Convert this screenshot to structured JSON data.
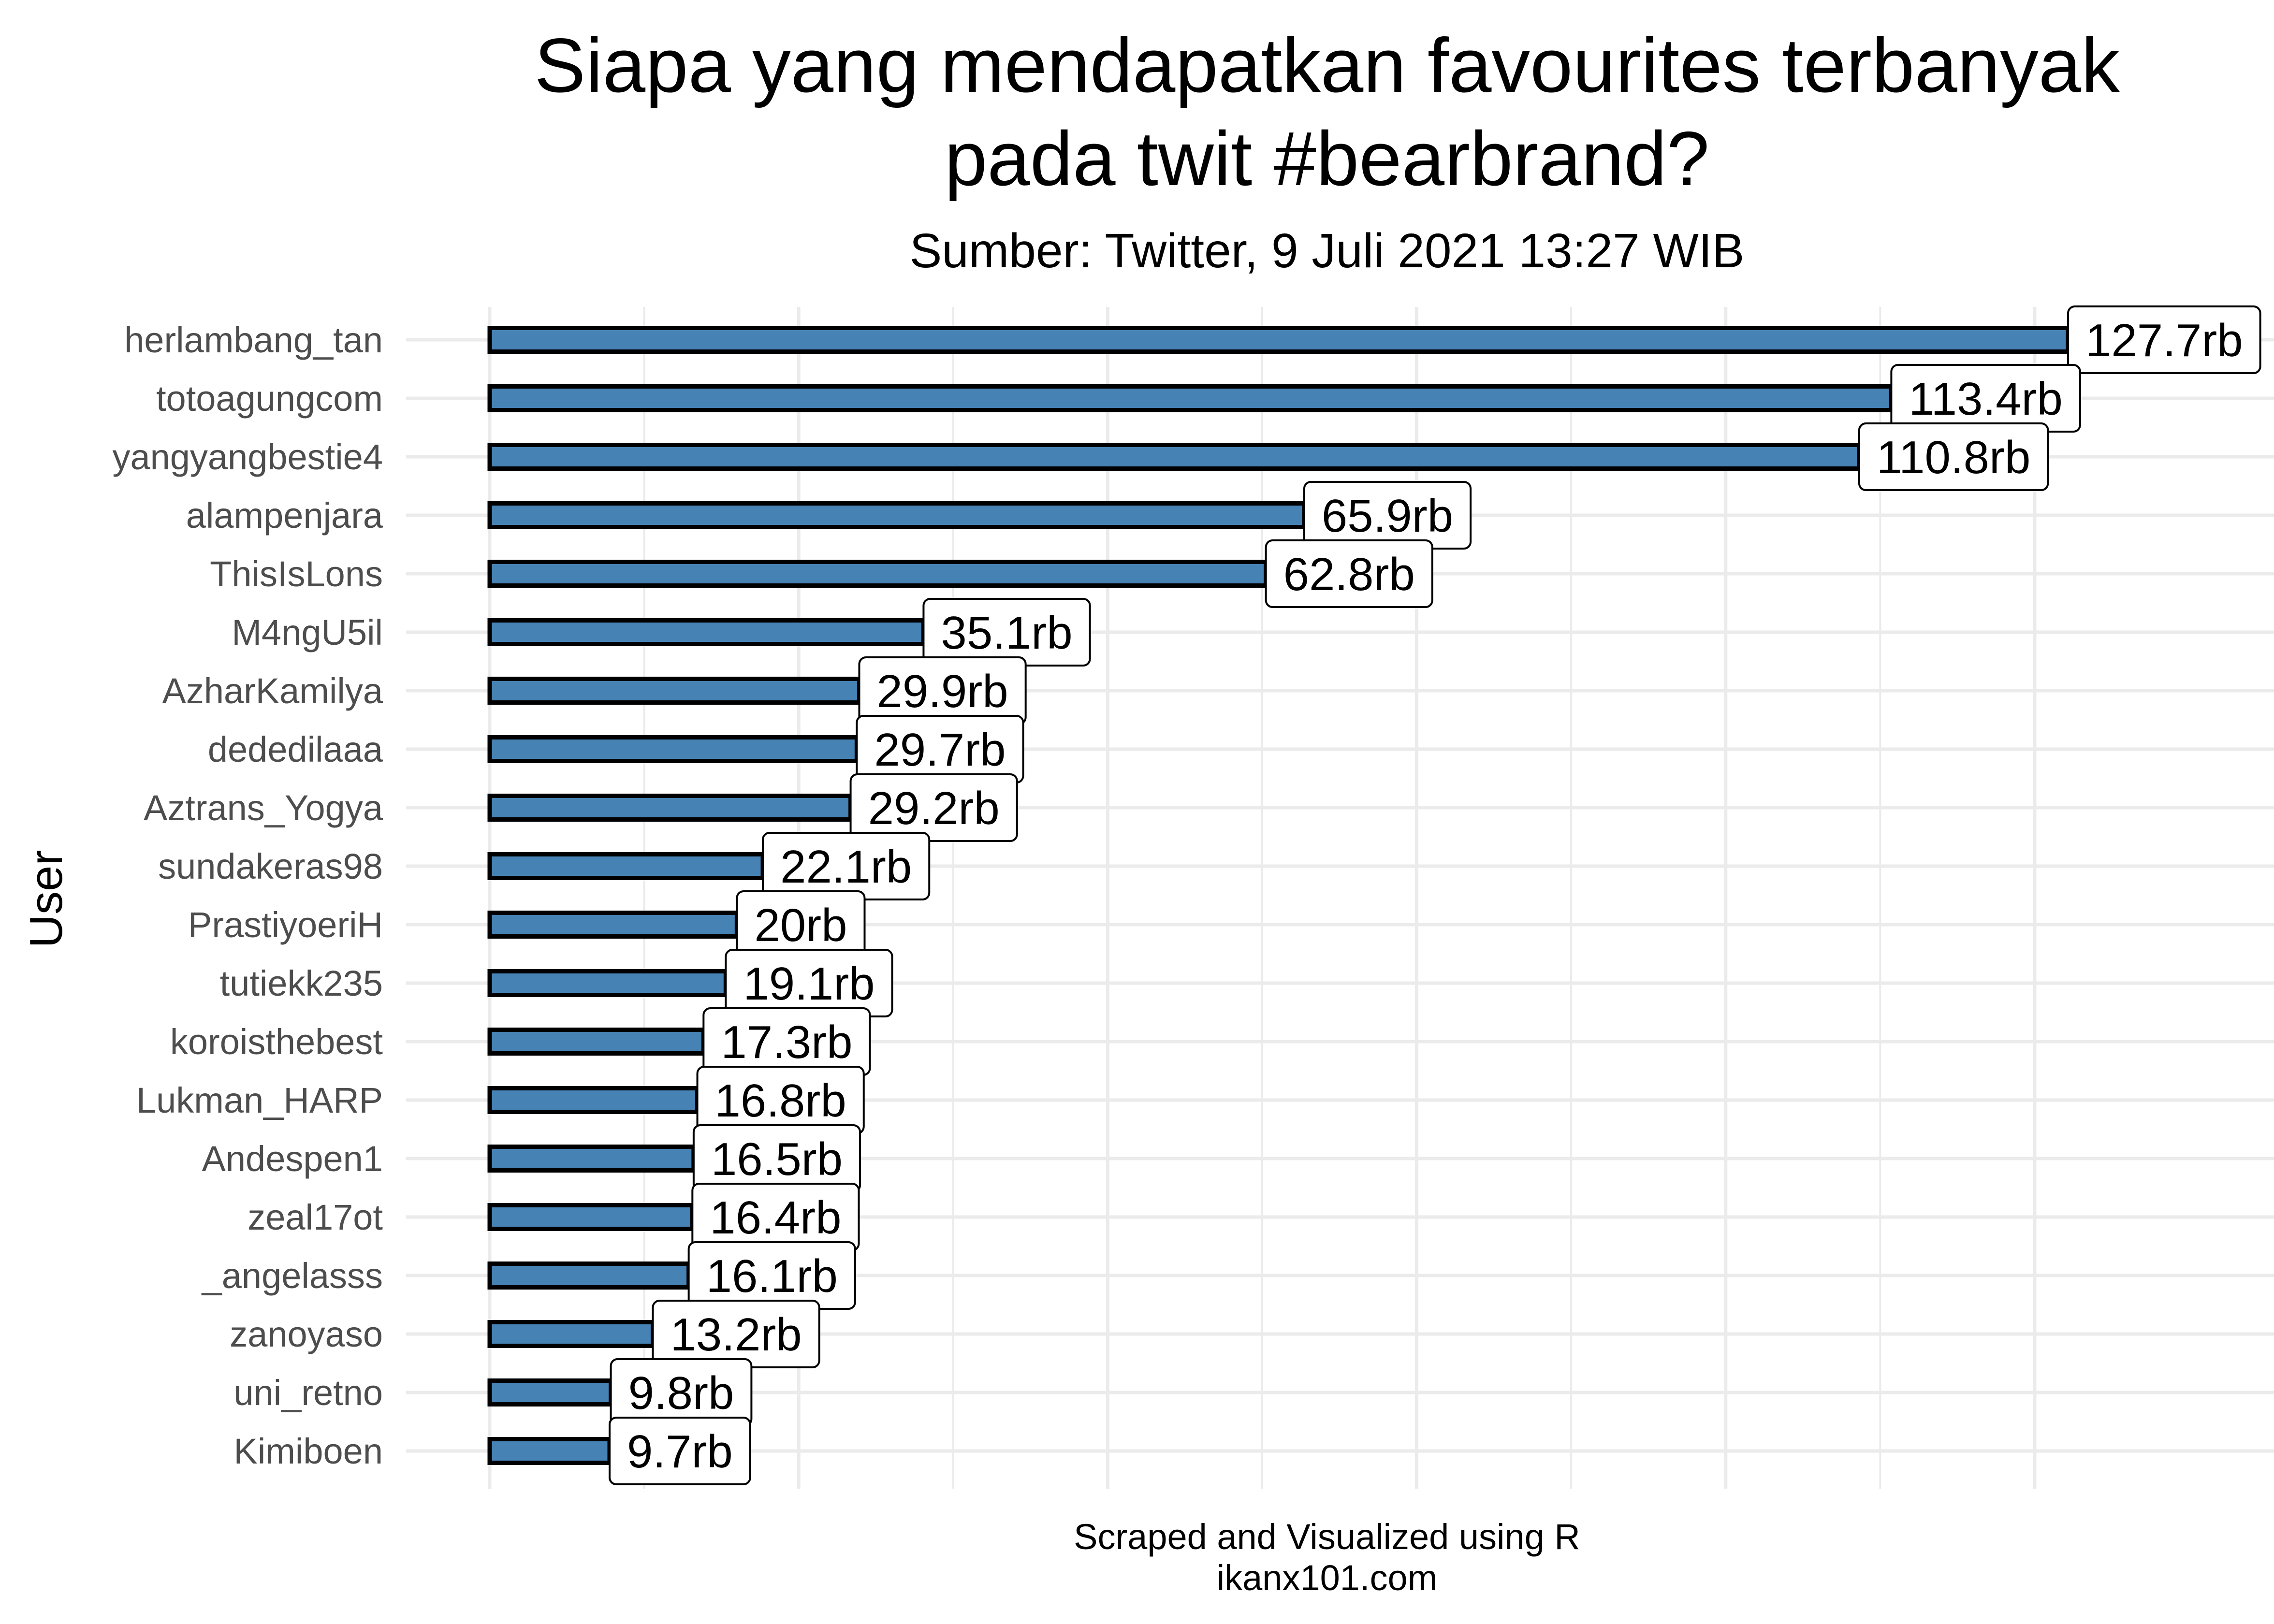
{
  "chart_data": {
    "type": "bar",
    "orientation": "horizontal",
    "title_line1": "Siapa yang mendapatkan favourites terbanyak",
    "title_line2": "pada twit #bearbrand?",
    "subtitle": "Sumber: Twitter, 9 Juli 2021 13:27 WIB",
    "ylabel": "User",
    "caption_line1": "Scraped and Visualized using R",
    "caption_line2": "ikanx101.com",
    "categories": [
      "herlambang_tan",
      "totoagungcom",
      "yangyangbestie4",
      "alampenjara",
      "ThisIsLons",
      "M4ngU5il",
      "AzharKamilya",
      "dededilaaa",
      "Aztrans_Yogya",
      "sundakeras98",
      "PrastiyoeriH",
      "tutiekk235",
      "koroisthebest",
      "Lukman_HARP",
      "Andespen1",
      "zeal17ot",
      "_angelasss",
      "zanoyaso",
      "uni_retno",
      "Kimiboen"
    ],
    "values": [
      127700,
      113400,
      110800,
      65900,
      62800,
      35100,
      29900,
      29700,
      29200,
      22100,
      20000,
      19100,
      17300,
      16800,
      16500,
      16400,
      16100,
      13200,
      9800,
      9700
    ],
    "value_labels": [
      "127.7rb",
      "113.4rb",
      "110.8rb",
      "65.9rb",
      "62.8rb",
      "35.1rb",
      "29.9rb",
      "29.7rb",
      "29.2rb",
      "22.1rb",
      "20rb",
      "19.1rb",
      "17.3rb",
      "16.8rb",
      "16.5rb",
      "16.4rb",
      "16.1rb",
      "13.2rb",
      "9.8rb",
      "9.7rb"
    ],
    "xlim": [
      0,
      135000
    ],
    "x_ticks_shown": false,
    "grid": true,
    "colors": {
      "bar_fill": "#4682b4",
      "bar_stroke": "#000000",
      "grid": "#ebebeb",
      "label_bg": "#ffffff"
    }
  }
}
